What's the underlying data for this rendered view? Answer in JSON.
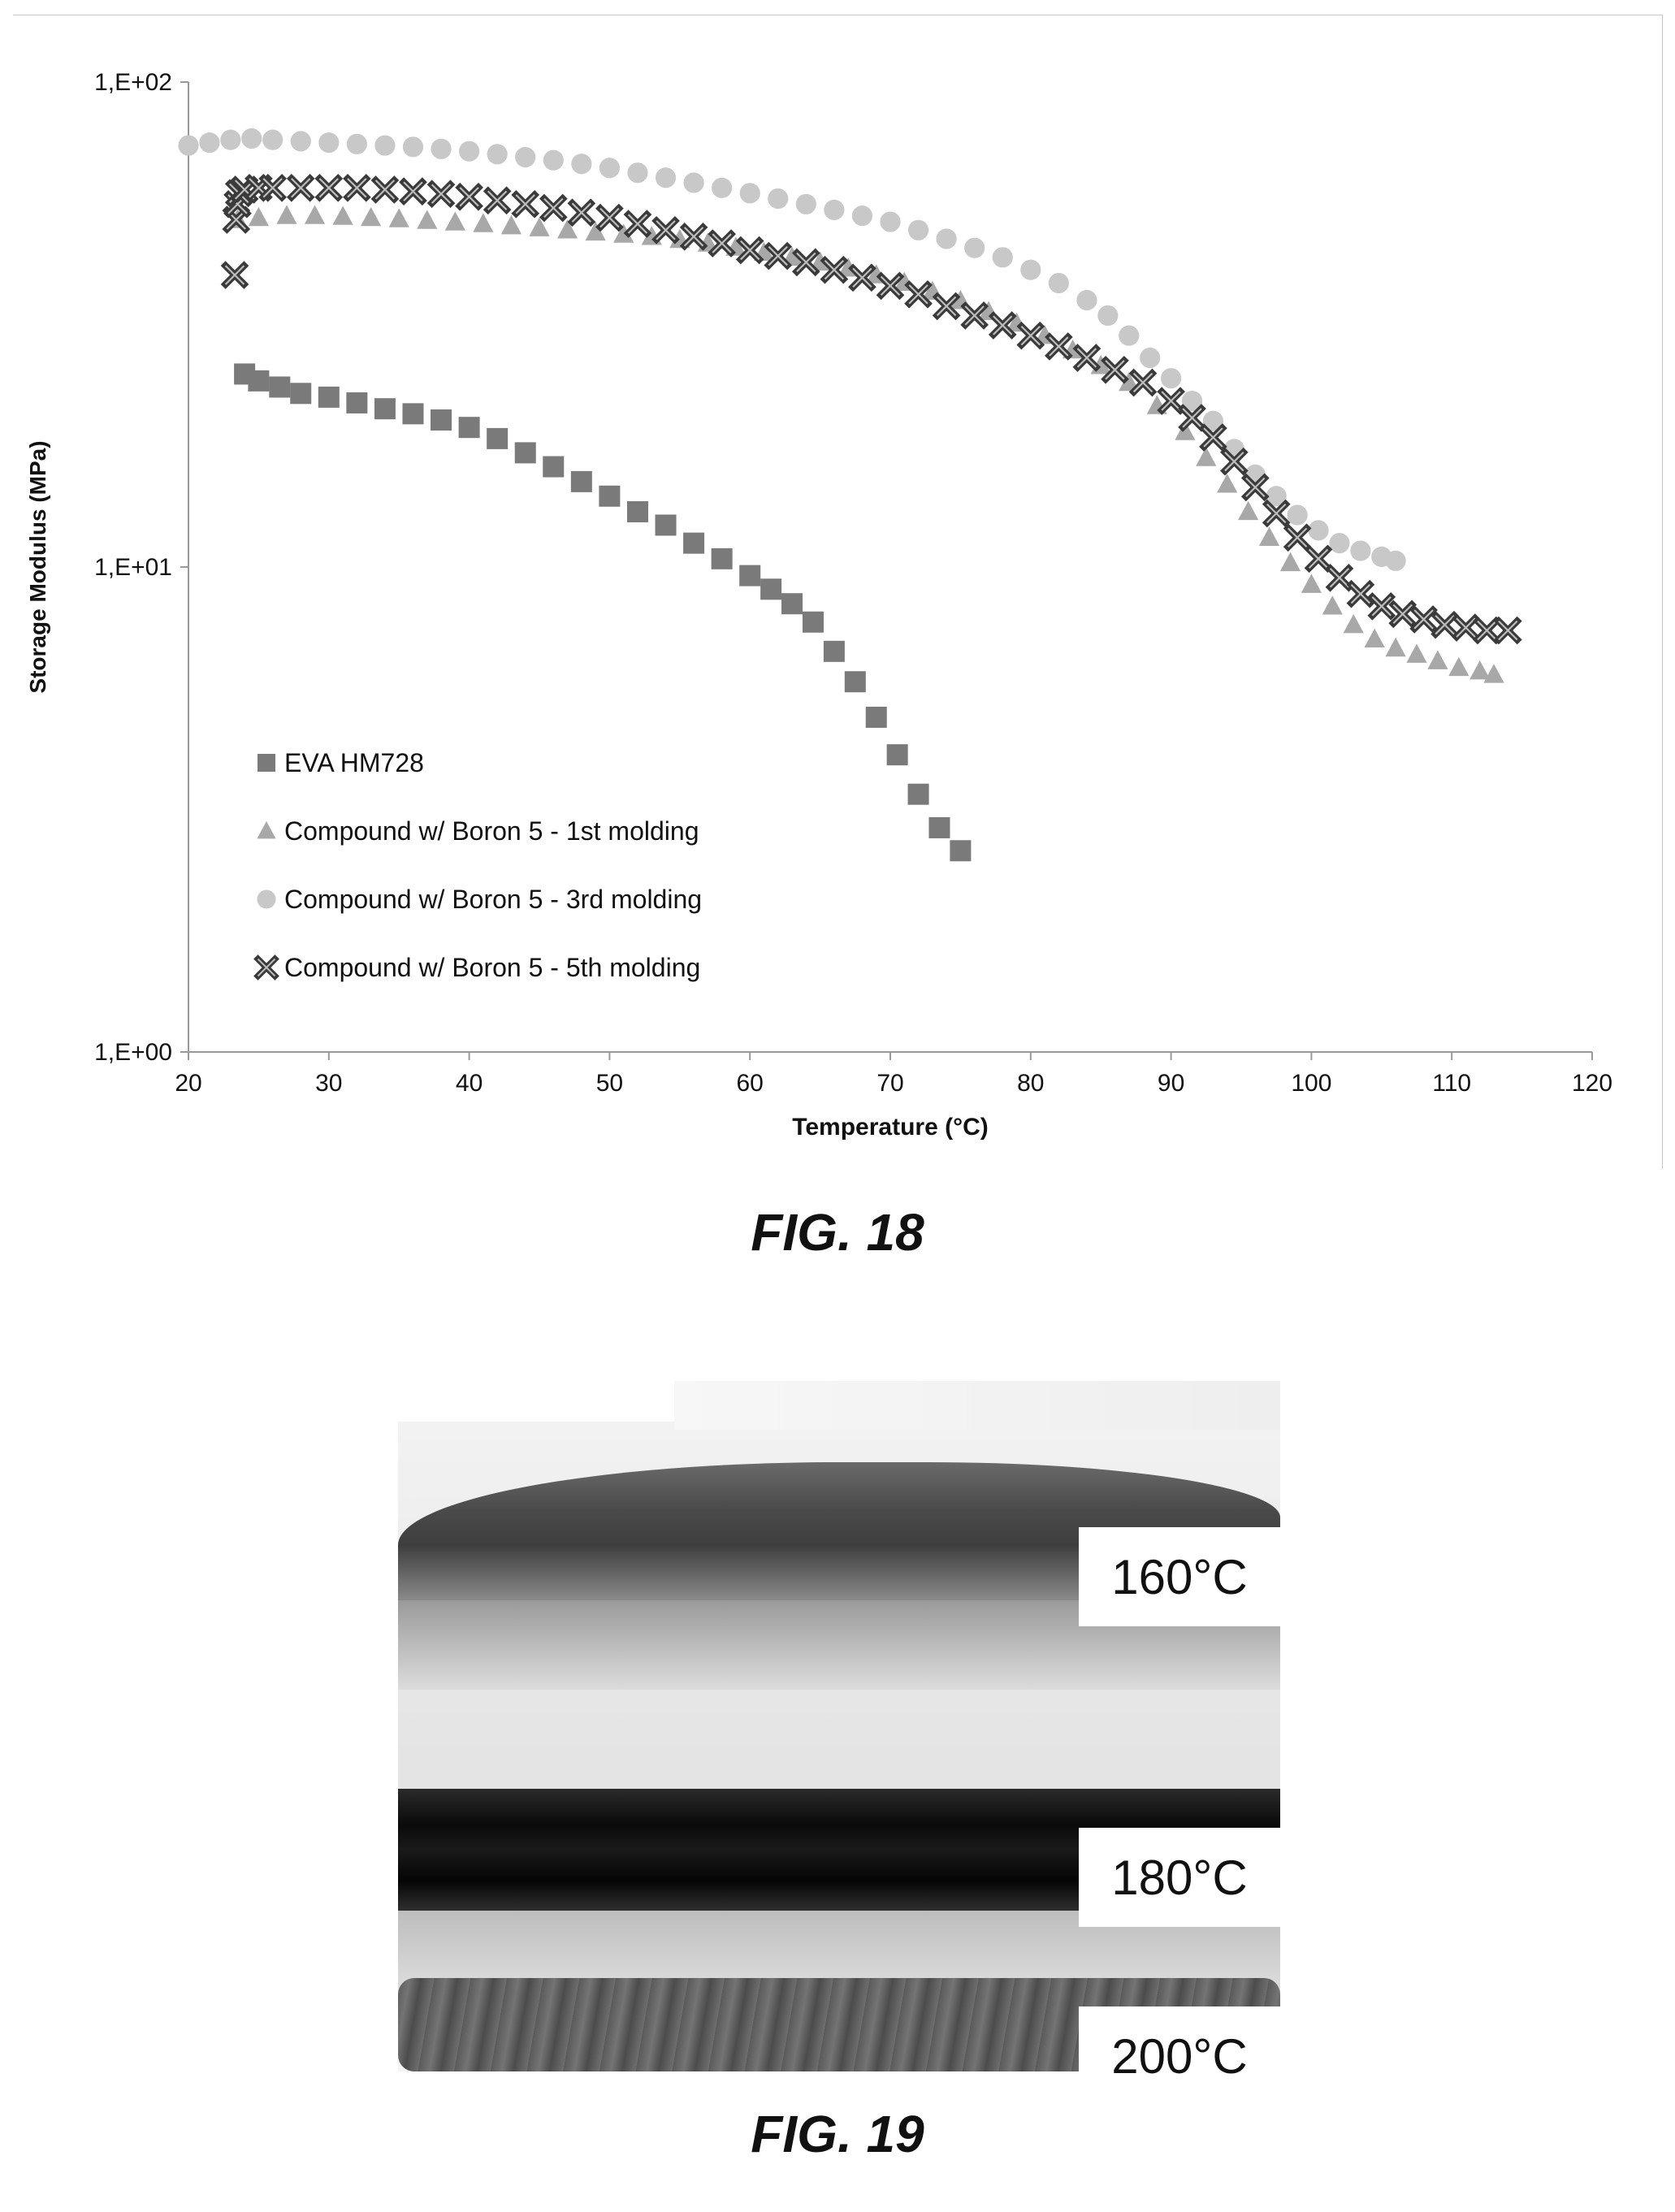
{
  "figures": {
    "fig18_caption": "FIG. 18",
    "fig19_caption": "FIG. 19"
  },
  "chart_data": {
    "type": "scatter",
    "xlabel": "Temperature (°C)",
    "ylabel": "Storage Modulus (MPa)",
    "xlim": [
      20,
      120
    ],
    "ylim": [
      1,
      100
    ],
    "y_scale": "log",
    "x_ticks": [
      "20",
      "30",
      "40",
      "50",
      "60",
      "70",
      "80",
      "90",
      "100",
      "110",
      "120"
    ],
    "y_ticks": [
      "1,E+00",
      "1,E+01",
      "1,E+02"
    ],
    "grid": false,
    "legend_position": "bottom-left (inside plot)",
    "series": [
      {
        "name": "EVA HM728",
        "marker": "square",
        "color": "#7a7a7a",
        "x": [
          24,
          25,
          26.5,
          28,
          30,
          32,
          34,
          36,
          38,
          40,
          42,
          44,
          46,
          48,
          50,
          52,
          54,
          56,
          58,
          60,
          61.5,
          63,
          64.5,
          66,
          67.5,
          69,
          70.5,
          72,
          73.5,
          75
        ],
        "y": [
          25,
          24.2,
          23.5,
          22.8,
          22.4,
          21.8,
          21.2,
          20.7,
          20.1,
          19.4,
          18.4,
          17.2,
          16.1,
          15,
          14,
          13,
          12.2,
          11.2,
          10.4,
          9.6,
          9,
          8.4,
          7.7,
          6.7,
          5.8,
          4.9,
          4.1,
          3.4,
          2.9,
          2.6
        ]
      },
      {
        "name": "Compound w/ Boron 5 - 1st molding",
        "marker": "triangle",
        "color": "#a8a8a8",
        "x": [
          23.5,
          25,
          27,
          29,
          31,
          33,
          35,
          37,
          39,
          41,
          43,
          45,
          47,
          49,
          51,
          53,
          55,
          57,
          59,
          61,
          63,
          65,
          67,
          69,
          71,
          73,
          75,
          77,
          79,
          81,
          83,
          85,
          87,
          89,
          91,
          92.5,
          94,
          95.5,
          97,
          98.5,
          100,
          101.5,
          103,
          104.5,
          106,
          107.5,
          109,
          110.5,
          112,
          113
        ],
        "y": [
          52,
          52.5,
          53,
          53,
          52.8,
          52.5,
          52.2,
          51.8,
          51.4,
          51,
          50.5,
          50,
          49.5,
          49,
          48.5,
          48,
          47.3,
          46.5,
          45.6,
          44.5,
          43.5,
          42.5,
          41.3,
          40,
          38.6,
          37,
          35.4,
          33.6,
          31.8,
          30,
          28,
          26,
          24,
          21.5,
          19,
          16.8,
          14.8,
          13,
          11.5,
          10.2,
          9.2,
          8.3,
          7.6,
          7.1,
          6.8,
          6.6,
          6.4,
          6.2,
          6.1,
          6
        ]
      },
      {
        "name": "Compound w/ Boron 5 - 3rd molding",
        "marker": "circle",
        "color": "#c8c8c8",
        "x": [
          20,
          21.5,
          23,
          24.5,
          26,
          28,
          30,
          32,
          34,
          36,
          38,
          40,
          42,
          44,
          46,
          48,
          50,
          52,
          54,
          56,
          58,
          60,
          62,
          64,
          66,
          68,
          70,
          72,
          74,
          76,
          78,
          80,
          82,
          84,
          85.5,
          87,
          88.5,
          90,
          91.5,
          93,
          94.5,
          96,
          97.5,
          99,
          100.5,
          102,
          103.5,
          105,
          106
        ],
        "y": [
          74,
          75,
          76,
          76.5,
          76,
          75.5,
          75,
          74.5,
          74,
          73.5,
          72.8,
          72,
          71,
          70,
          69,
          67.8,
          66.5,
          65,
          63.5,
          62,
          60.5,
          59,
          57.5,
          56,
          54.5,
          53,
          51.5,
          49.5,
          47.5,
          45.5,
          43.5,
          41,
          38.5,
          35.5,
          33,
          30,
          27,
          24.5,
          22,
          20,
          17.5,
          15.5,
          14,
          12.8,
          11.9,
          11.2,
          10.8,
          10.5,
          10.3
        ]
      },
      {
        "name": "Compound w/ Boron 5 - 5th molding",
        "marker": "x",
        "color": "#3a3a3a",
        "x": [
          23.3,
          23.4,
          23.5,
          23.6,
          24,
          25,
          26,
          28,
          30,
          32,
          34,
          36,
          38,
          40,
          42,
          44,
          46,
          48,
          50,
          52,
          54,
          56,
          58,
          60,
          62,
          64,
          66,
          68,
          70,
          72,
          74,
          76,
          78,
          80,
          82,
          84,
          86,
          88,
          90,
          91.5,
          93,
          94.5,
          96,
          97.5,
          99,
          100.5,
          102,
          103.5,
          105,
          106.5,
          108,
          109.5,
          111,
          112.5,
          114
        ],
        "y": [
          40,
          52,
          56,
          59,
          60,
          60.5,
          60.5,
          60.5,
          60.5,
          60.5,
          60,
          59.5,
          58.8,
          58,
          57,
          56,
          55,
          53.8,
          52.5,
          51,
          49.5,
          48,
          46.5,
          45,
          43.8,
          42.5,
          41,
          39.5,
          38,
          36.5,
          34.5,
          33,
          31.5,
          30,
          28.5,
          27,
          25.5,
          24,
          22,
          20.3,
          18.5,
          16.5,
          14.6,
          12.9,
          11.5,
          10.4,
          9.5,
          8.8,
          8.3,
          8,
          7.8,
          7.6,
          7.5,
          7.4,
          7.4
        ]
      }
    ]
  },
  "fig19": {
    "labels": [
      "160°C",
      "180°C",
      "200°C"
    ]
  }
}
